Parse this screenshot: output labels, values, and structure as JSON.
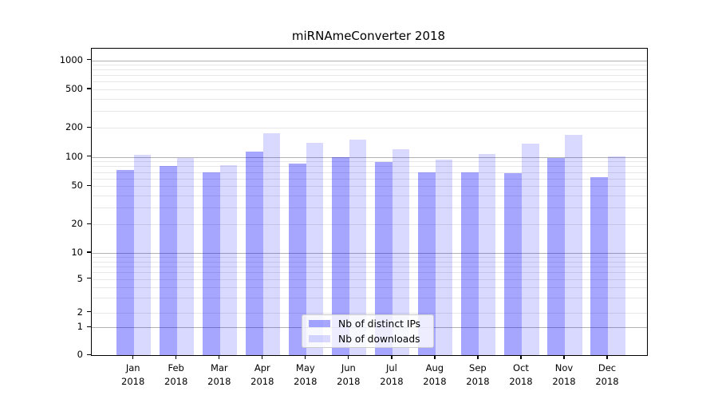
{
  "figure": {
    "title": "miRNAmeConverter 2018"
  },
  "legend": {
    "items": [
      {
        "label": "Nb of distinct IPs",
        "color": "rgba(0,0,255,0.35)"
      },
      {
        "label": "Nb of downloads",
        "color": "rgba(0,0,255,0.15)"
      }
    ]
  },
  "axes": {
    "ytick_labels": [
      "0",
      "1",
      "2",
      "5",
      "10",
      "20",
      "50",
      "100",
      "200",
      "500",
      "1000"
    ],
    "xtick_months": [
      "Jan",
      "Feb",
      "Mar",
      "Apr",
      "May",
      "Jun",
      "Jul",
      "Aug",
      "Sep",
      "Oct",
      "Nov",
      "Dec"
    ],
    "xtick_year": "2018"
  },
  "chart_data": {
    "type": "bar",
    "title": "miRNAmeConverter 2018",
    "categories": [
      "Jan 2018",
      "Feb 2018",
      "Mar 2018",
      "Apr 2018",
      "May 2018",
      "Jun 2018",
      "Jul 2018",
      "Aug 2018",
      "Sep 2018",
      "Oct 2018",
      "Nov 2018",
      "Dec 2018"
    ],
    "series": [
      {
        "name": "Nb of distinct IPs",
        "color": "rgba(0,0,255,0.35)",
        "values": [
          73,
          80,
          70,
          113,
          86,
          99,
          88,
          69,
          69,
          68,
          97,
          62
        ]
      },
      {
        "name": "Nb of downloads",
        "color": "rgba(0,0,255,0.15)",
        "values": [
          104,
          98,
          82,
          176,
          140,
          150,
          121,
          94,
          108,
          137,
          170,
          102
        ]
      }
    ],
    "xlabel": "",
    "ylabel": "",
    "yscale": "symlog",
    "yticks": [
      0,
      1,
      2,
      5,
      10,
      20,
      50,
      100,
      200,
      500,
      1000
    ],
    "ylim": [
      0,
      1300
    ],
    "grid": true,
    "grid_major_at": [
      1,
      10,
      100,
      1000
    ],
    "legend_position": "lower center",
    "bar_color_major": "rgba(0,0,255,0.35)",
    "bar_color_minor": "rgba(0,0,255,0.15)"
  }
}
